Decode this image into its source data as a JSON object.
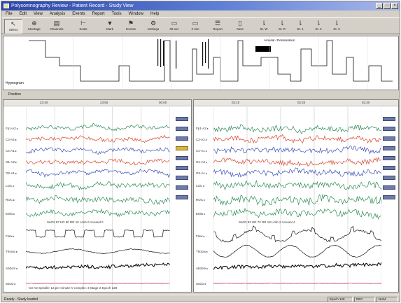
{
  "window": {
    "title": "Polysomnography Review - Patient Record - Study View",
    "controls": [
      "_",
      "□",
      "×"
    ]
  },
  "menu": [
    "File",
    "Edit",
    "View",
    "Analysis",
    "Events",
    "Report",
    "Tools",
    "Window",
    "Help"
  ],
  "toolbar": [
    {
      "icon": "arrow-icon",
      "glyph": "↖",
      "label": "Select"
    },
    {
      "icon": "zoom-icon",
      "glyph": "⊕",
      "label": "Montage"
    },
    {
      "icon": "filter-icon",
      "glyph": "▤",
      "label": "Channels"
    },
    {
      "icon": "ruler-icon",
      "glyph": "⊢",
      "label": "Scale"
    },
    {
      "icon": "marker-icon",
      "glyph": "▼",
      "label": "Mark"
    },
    {
      "icon": "flag-icon",
      "glyph": "⚑",
      "label": "Events"
    },
    {
      "icon": "settings-icon",
      "glyph": "⚙",
      "label": "Settings"
    },
    {
      "icon": "screen-icon",
      "glyph": "▭",
      "label": "30 sec"
    },
    {
      "icon": "screen-icon",
      "glyph": "▭",
      "label": "2 min"
    },
    {
      "icon": "list-icon",
      "glyph": "☰",
      "label": "Report"
    },
    {
      "icon": "page-icon",
      "glyph": "▯",
      "label": "Next"
    },
    {
      "icon": "step-icon",
      "glyph": "⇂",
      "label": "St. W"
    },
    {
      "icon": "step-icon",
      "glyph": "⇂",
      "label": "St. R"
    },
    {
      "icon": "step-icon",
      "glyph": "⇂",
      "label": "St. 1"
    },
    {
      "icon": "step-icon",
      "glyph": "⇂",
      "label": "St. 2"
    },
    {
      "icon": "step-icon",
      "glyph": "⇂",
      "label": "St. 3"
    }
  ],
  "overview": {
    "row_label": "Hypnogram",
    "position_label": "Position",
    "note": "Arousal / Desaturation",
    "stage_ticks": [
      "W",
      "R",
      "1",
      "2",
      "3",
      "4"
    ]
  },
  "left_panel": {
    "times": [
      "23:40",
      "23:50",
      "00:00"
    ],
    "annotation": "SaO2 97  HR 60  RR 15  Limb 0  Arousal 0",
    "footer": "C3-A2 Spindle: 12 per minute  K-complex: 3  Stage 2  Epoch 128"
  },
  "right_panel": {
    "times": [
      "02:10",
      "02:20",
      "02:30"
    ],
    "annotation": "SaO2 93  HR 72  RR 18  Limb 2  Arousal 4"
  },
  "channels": [
    "Fp1-A2",
    "C3-A2",
    "C4-A1",
    "O1-A2",
    "O2-A1",
    "LOC",
    "ROC",
    "EMG",
    "Flow",
    "Thorax",
    "Abdom",
    "SaO2"
  ],
  "status": {
    "left": "Ready - Study loaded",
    "cells": [
      "Epoch 128",
      "REC",
      "NUM"
    ]
  }
}
